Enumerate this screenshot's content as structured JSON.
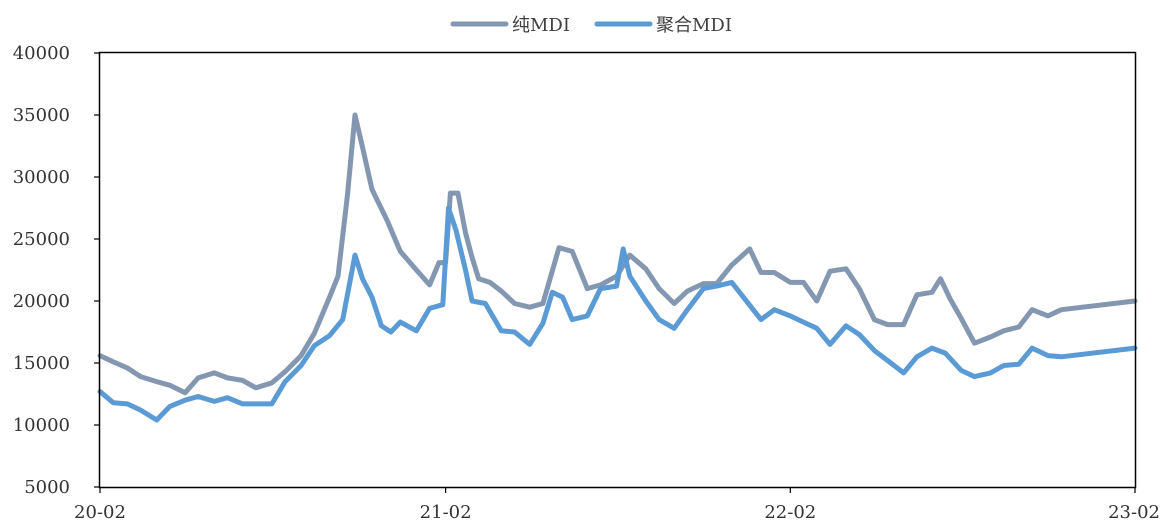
{
  "chart_data": {
    "type": "line",
    "x_ticks": [
      "20-02",
      "21-02",
      "22-02",
      "23-02"
    ],
    "y_ticks": [
      5000,
      10000,
      15000,
      20000,
      25000,
      30000,
      35000,
      40000
    ],
    "ylim": [
      5000,
      40000
    ],
    "grid": false,
    "legend_position": "top-center",
    "series": [
      {
        "name": "纯MDI",
        "color": "#8497b0",
        "points": [
          [
            "20-02",
            15600
          ],
          [
            "20-02-15",
            15100
          ],
          [
            "20-03-01",
            14600
          ],
          [
            "20-03-15",
            13900
          ],
          [
            "20-04-01",
            13500
          ],
          [
            "20-04-15",
            13200
          ],
          [
            "20-05-01",
            12600
          ],
          [
            "20-05-15",
            13800
          ],
          [
            "20-06-01",
            14200
          ],
          [
            "20-06-15",
            13800
          ],
          [
            "20-07-01",
            13600
          ],
          [
            "20-07-15",
            13000
          ],
          [
            "20-08-01",
            13400
          ],
          [
            "20-08-15",
            14300
          ],
          [
            "20-09-01",
            15600
          ],
          [
            "20-09-15",
            17400
          ],
          [
            "20-10-01",
            20300
          ],
          [
            "20-10-10",
            22000
          ],
          [
            "20-10-20",
            28500
          ],
          [
            "20-10-28",
            35000
          ],
          [
            "20-11-05",
            32400
          ],
          [
            "20-11-15",
            29000
          ],
          [
            "20-12-01",
            26500
          ],
          [
            "20-12-15",
            24000
          ],
          [
            "21-01-01",
            22500
          ],
          [
            "21-01-15",
            21300
          ],
          [
            "21-01-25",
            23100
          ],
          [
            "21-02-01",
            23100
          ],
          [
            "21-02-06",
            28700
          ],
          [
            "21-02-14",
            28700
          ],
          [
            "21-02-22",
            25500
          ],
          [
            "21-03-01",
            23500
          ],
          [
            "21-03-08",
            21800
          ],
          [
            "21-03-20",
            21500
          ],
          [
            "21-04-01",
            20800
          ],
          [
            "21-04-15",
            19800
          ],
          [
            "21-05-01",
            19500
          ],
          [
            "21-05-15",
            19800
          ],
          [
            "21-06-01",
            24300
          ],
          [
            "21-06-15",
            24000
          ],
          [
            "21-07-01",
            21000
          ],
          [
            "21-07-15",
            21300
          ],
          [
            "21-08-01",
            22000
          ],
          [
            "21-08-15",
            23700
          ],
          [
            "21-09-01",
            22600
          ],
          [
            "21-09-15",
            21000
          ],
          [
            "21-10-01",
            19800
          ],
          [
            "21-10-15",
            20800
          ],
          [
            "21-11-01",
            21400
          ],
          [
            "21-11-15",
            21400
          ],
          [
            "21-12-01",
            22900
          ],
          [
            "21-12-20",
            24200
          ],
          [
            "22-01-01",
            22300
          ],
          [
            "22-01-15",
            22300
          ],
          [
            "22-02-01",
            21500
          ],
          [
            "22-02-15",
            21500
          ],
          [
            "22-03-01",
            20000
          ],
          [
            "22-03-15",
            22400
          ],
          [
            "22-04-01",
            22600
          ],
          [
            "22-04-15",
            21000
          ],
          [
            "22-05-01",
            18500
          ],
          [
            "22-05-15",
            18100
          ],
          [
            "22-06-01",
            18100
          ],
          [
            "22-06-15",
            20500
          ],
          [
            "22-07-01",
            20700
          ],
          [
            "22-07-10",
            21800
          ],
          [
            "22-07-20",
            20200
          ],
          [
            "22-08-01",
            18600
          ],
          [
            "22-08-15",
            16600
          ],
          [
            "22-09-01",
            17100
          ],
          [
            "22-09-15",
            17600
          ],
          [
            "22-10-01",
            17900
          ],
          [
            "22-10-15",
            19300
          ],
          [
            "22-11-01",
            18800
          ],
          [
            "22-11-15",
            19300
          ],
          [
            "23-02",
            20000
          ]
        ]
      },
      {
        "name": "聚合MDI",
        "color": "#5b9bd5",
        "points": [
          [
            "20-02",
            12700
          ],
          [
            "20-02-15",
            11800
          ],
          [
            "20-03-01",
            11700
          ],
          [
            "20-03-15",
            11200
          ],
          [
            "20-04-01",
            10400
          ],
          [
            "20-04-15",
            11500
          ],
          [
            "20-05-01",
            12000
          ],
          [
            "20-05-15",
            12300
          ],
          [
            "20-06-01",
            11900
          ],
          [
            "20-06-15",
            12200
          ],
          [
            "20-07-01",
            11700
          ],
          [
            "20-07-15",
            11700
          ],
          [
            "20-08-01",
            11700
          ],
          [
            "20-08-15",
            13500
          ],
          [
            "20-09-01",
            14800
          ],
          [
            "20-09-15",
            16400
          ],
          [
            "20-10-01",
            17200
          ],
          [
            "20-10-15",
            18500
          ],
          [
            "20-10-28",
            23700
          ],
          [
            "20-11-05",
            21800
          ],
          [
            "20-11-15",
            20300
          ],
          [
            "20-11-25",
            18000
          ],
          [
            "20-12-05",
            17500
          ],
          [
            "20-12-15",
            18300
          ],
          [
            "21-01-01",
            17600
          ],
          [
            "21-01-15",
            19400
          ],
          [
            "21-01-29",
            19700
          ],
          [
            "21-02-04",
            27500
          ],
          [
            "21-02-12",
            25700
          ],
          [
            "21-02-22",
            22500
          ],
          [
            "21-03-01",
            20000
          ],
          [
            "21-03-15",
            19800
          ],
          [
            "21-04-01",
            17600
          ],
          [
            "21-04-15",
            17500
          ],
          [
            "21-05-01",
            16500
          ],
          [
            "21-05-15",
            18200
          ],
          [
            "21-05-25",
            20700
          ],
          [
            "21-06-05",
            20300
          ],
          [
            "21-06-15",
            18500
          ],
          [
            "21-07-01",
            18800
          ],
          [
            "21-07-15",
            21000
          ],
          [
            "21-08-01",
            21200
          ],
          [
            "21-08-08",
            24200
          ],
          [
            "21-08-15",
            22000
          ],
          [
            "21-09-01",
            20000
          ],
          [
            "21-09-15",
            18500
          ],
          [
            "21-10-01",
            17800
          ],
          [
            "21-10-15",
            19300
          ],
          [
            "21-11-01",
            21000
          ],
          [
            "21-11-15",
            21200
          ],
          [
            "21-12-01",
            21500
          ],
          [
            "22-01-01",
            18500
          ],
          [
            "22-01-15",
            19300
          ],
          [
            "22-02-01",
            18800
          ],
          [
            "22-02-15",
            18300
          ],
          [
            "22-03-01",
            17800
          ],
          [
            "22-03-15",
            16500
          ],
          [
            "22-04-01",
            18000
          ],
          [
            "22-04-15",
            17300
          ],
          [
            "22-05-01",
            16000
          ],
          [
            "22-05-15",
            15200
          ],
          [
            "22-06-01",
            14200
          ],
          [
            "22-06-15",
            15500
          ],
          [
            "22-07-01",
            16200
          ],
          [
            "22-07-15",
            15800
          ],
          [
            "22-08-01",
            14400
          ],
          [
            "22-08-15",
            13900
          ],
          [
            "22-09-01",
            14200
          ],
          [
            "22-09-15",
            14800
          ],
          [
            "22-10-01",
            14900
          ],
          [
            "22-10-15",
            16200
          ],
          [
            "22-11-01",
            15600
          ],
          [
            "22-11-15",
            15500
          ],
          [
            "23-02",
            16200
          ]
        ]
      }
    ]
  }
}
